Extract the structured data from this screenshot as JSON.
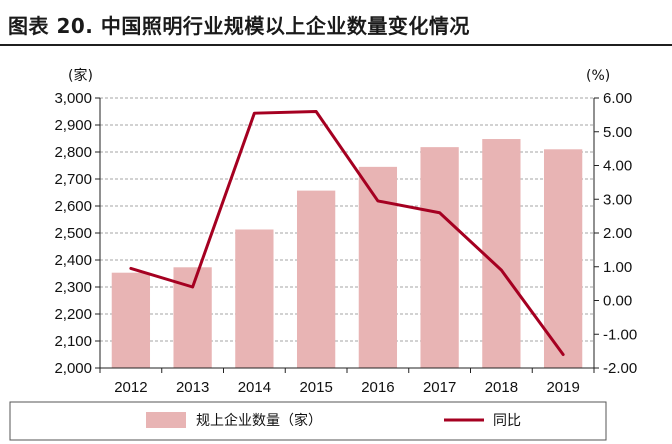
{
  "title": "图表 20. 中国照明行业规模以上企业数量变化情况",
  "chart_data": {
    "type": "bar",
    "categories": [
      "2012",
      "2013",
      "2014",
      "2015",
      "2016",
      "2017",
      "2018",
      "2019"
    ],
    "series": [
      {
        "name": "规上企业数量（家）",
        "type": "bar",
        "axis": "left",
        "values": [
          2353,
          2373,
          2513,
          2657,
          2745,
          2818,
          2848,
          2810
        ]
      },
      {
        "name": "同比",
        "type": "line",
        "axis": "right",
        "values": [
          0.95,
          0.4,
          5.55,
          5.6,
          2.95,
          2.6,
          0.9,
          -1.6
        ]
      }
    ],
    "ylabel_left": "(家)",
    "ylabel_right": "(%)",
    "ylim_left": [
      2000,
      3000
    ],
    "ylim_right": [
      -2,
      6
    ],
    "yticks_left": [
      "2,000",
      "2,100",
      "2,200",
      "2,300",
      "2,400",
      "2,500",
      "2,600",
      "2,700",
      "2,800",
      "2,900",
      "3,000"
    ],
    "yticks_right": [
      "-2.00",
      "-1.00",
      "0.00",
      "1.00",
      "2.00",
      "3.00",
      "4.00",
      "5.00",
      "6.00"
    ],
    "grid": true,
    "legend_position": "bottom",
    "colors": {
      "bar": "#e8b4b4",
      "line": "#a50021",
      "grid": "#a6a6a6"
    }
  }
}
